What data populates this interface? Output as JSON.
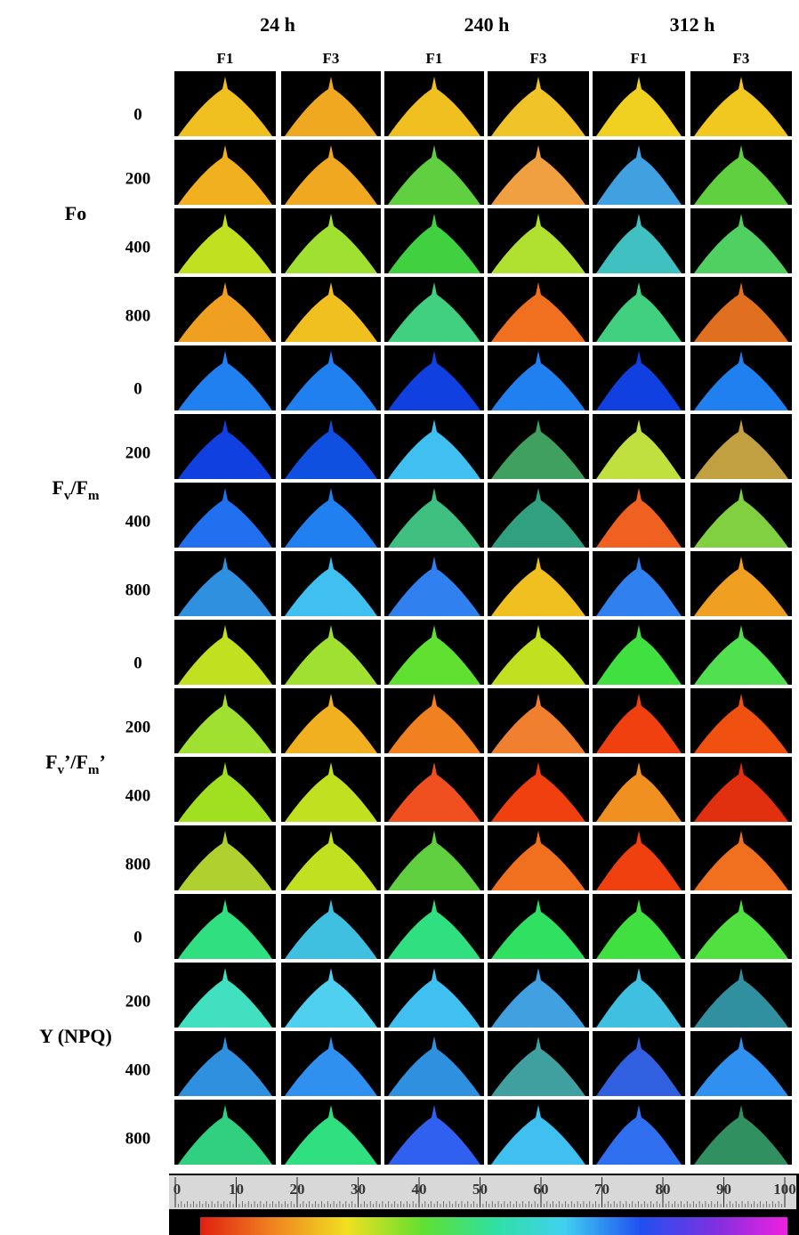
{
  "columns": [
    {
      "label": "24 h",
      "subs": [
        "F1",
        "F3"
      ]
    },
    {
      "label": "240 h",
      "subs": [
        "F1",
        "F3"
      ]
    },
    {
      "label": "312 h",
      "subs": [
        "F1",
        "F3"
      ]
    }
  ],
  "row_groups": [
    {
      "label_parts": [
        {
          "text": "Fo"
        }
      ],
      "rows": [
        "0",
        "200",
        "400",
        "800"
      ]
    },
    {
      "label_parts": [
        {
          "text": "F"
        },
        {
          "text": "v",
          "sub": true
        },
        {
          "text": "/F"
        },
        {
          "text": "m",
          "sub": true
        }
      ],
      "rows": [
        "0",
        "200",
        "400",
        "800"
      ]
    },
    {
      "label_parts": [
        {
          "text": "F"
        },
        {
          "text": "v",
          "sub": true
        },
        {
          "text": "’/F"
        },
        {
          "text": "m",
          "sub": true
        },
        {
          "text": "’"
        }
      ],
      "rows": [
        "0",
        "200",
        "400",
        "800"
      ]
    },
    {
      "label_parts": [
        {
          "text": "Y (NPQ)"
        }
      ],
      "rows": [
        "0",
        "200",
        "400",
        "800"
      ]
    }
  ],
  "scale": {
    "ticks": [
      0,
      10,
      20,
      30,
      40,
      50,
      60,
      70,
      80,
      90,
      100
    ]
  }
}
